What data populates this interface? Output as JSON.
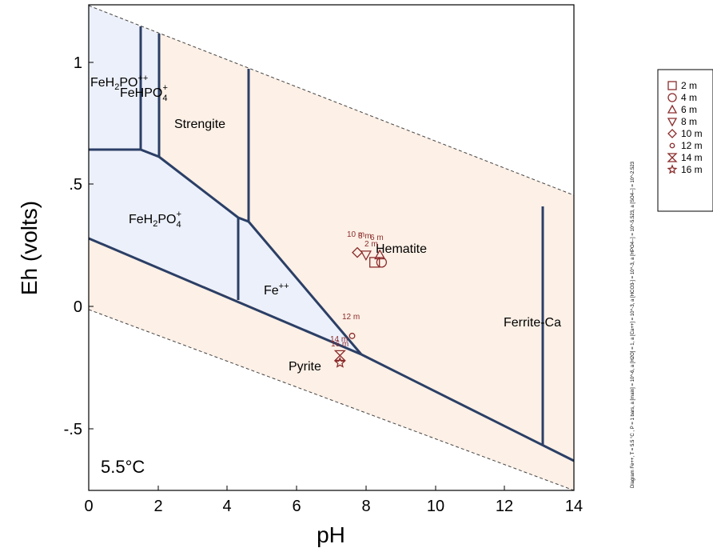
{
  "chart_data": {
    "type": "scatter",
    "title": "",
    "xlabel": "pH",
    "ylabel": "Eh (volts)",
    "xlim": [
      0,
      14
    ],
    "ylim": [
      -0.75,
      1.23
    ],
    "x_ticks": [
      "0",
      "2",
      "4",
      "6",
      "8",
      "10",
      "12",
      "14"
    ],
    "y_ticks": [
      "-.5",
      "0",
      ".5",
      "1"
    ],
    "temperature_label": "5.5°C",
    "colors": {
      "boundary": "#2b3f66",
      "fe_field": "#ecf0fa",
      "mineral_field": "#fdf0e6",
      "points": "#8b2c2c",
      "water_limits": "#444444"
    },
    "field_labels": [
      {
        "text": "FeH2PO4++ / FeHPO4+",
        "pH": 0.9,
        "Eh": 0.9
      },
      {
        "text": "Strengite",
        "pH": 3.5,
        "Eh": 0.75
      },
      {
        "text": "FeH2PO4+",
        "pH": 2.6,
        "Eh": 0.41
      },
      {
        "text": "Fe++",
        "pH": 5.4,
        "Eh": 0.06
      },
      {
        "text": "Hematite",
        "pH": 9.2,
        "Eh": 0.23
      },
      {
        "text": "Pyrite",
        "pH": 6.4,
        "Eh": -0.22
      },
      {
        "text": "Ferrite-Ca",
        "pH": 13.0,
        "Eh": -0.05
      }
    ],
    "series": [
      {
        "name": "2 m",
        "marker": "square",
        "x": 8.25,
        "y": 0.18
      },
      {
        "name": "4 m",
        "marker": "circle",
        "x": 8.45,
        "y": 0.18
      },
      {
        "name": "6 m",
        "marker": "triangle-up",
        "x": 8.4,
        "y": 0.21
      },
      {
        "name": "8 m",
        "marker": "triangle-down",
        "x": 8.0,
        "y": 0.21
      },
      {
        "name": "10 m",
        "marker": "diamond",
        "x": 7.75,
        "y": 0.22
      },
      {
        "name": "12 m",
        "marker": "small-circle",
        "x": 7.6,
        "y": -0.12
      },
      {
        "name": "14 m",
        "marker": "hourglass",
        "x": 7.25,
        "y": -0.2
      },
      {
        "name": "16 m",
        "marker": "star",
        "x": 7.25,
        "y": -0.23
      }
    ],
    "point_labels": [
      "2 m",
      "6 m",
      "8 m",
      "10 m",
      "12 m",
      "14 m",
      "16 m"
    ],
    "legend_position": "right"
  },
  "side_note": "Diagram Fe++, T = 5.5 °C , P = 1 bars, a [main] = 10^-6, a [H2O] = 1, a [Ca++] = 10^-3, a [HCO3-] = 10^-3, a [HPO4--] = 10^-5.523, a [SO4--] = 10^-2.523"
}
